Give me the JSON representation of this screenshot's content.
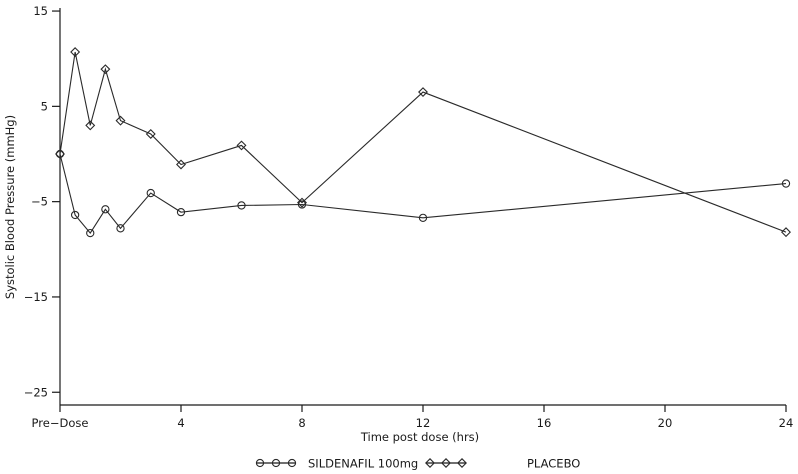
{
  "chart_data": {
    "type": "line",
    "title": "",
    "xlabel": "Time post dose (hrs)",
    "ylabel": "Systolic Blood Pressure (mmHg)",
    "x_ticks": [
      {
        "value": 0,
        "label": "Pre−Dose"
      },
      {
        "value": 4,
        "label": "4"
      },
      {
        "value": 8,
        "label": "8"
      },
      {
        "value": 12,
        "label": "12"
      },
      {
        "value": 16,
        "label": "16"
      },
      {
        "value": 20,
        "label": "20"
      },
      {
        "value": 24,
        "label": "24"
      }
    ],
    "y_ticks": [
      {
        "value": 15,
        "label": "15"
      },
      {
        "value": 5,
        "label": "5"
      },
      {
        "value": -5,
        "label": "−5"
      },
      {
        "value": -15,
        "label": "−15"
      },
      {
        "value": -25,
        "label": "−25"
      }
    ],
    "xlim": [
      0,
      24
    ],
    "ylim": [
      -26.5,
      15.5
    ],
    "grid": false,
    "legend_position": "bottom",
    "x": [
      0,
      0.5,
      1,
      1.5,
      2,
      3,
      4,
      6,
      8,
      12,
      24
    ],
    "series": [
      {
        "name": "SILDENAFIL 100mg",
        "marker": "circle",
        "values": [
          0,
          -6.4,
          -8.3,
          -5.8,
          -7.8,
          -4.1,
          -6.1,
          -5.4,
          -5.3,
          -6.7,
          -3.1
        ]
      },
      {
        "name": "PLACEBO",
        "marker": "diamond",
        "values": [
          0,
          10.7,
          3.0,
          8.9,
          3.5,
          2.1,
          -1.1,
          0.9,
          -5.1,
          6.5,
          -8.2
        ]
      }
    ],
    "colors": {
      "line": "#2a2a2a",
      "axis": "#1a1a1a",
      "text": "#1a1a1a",
      "background": "#ffffff"
    }
  }
}
